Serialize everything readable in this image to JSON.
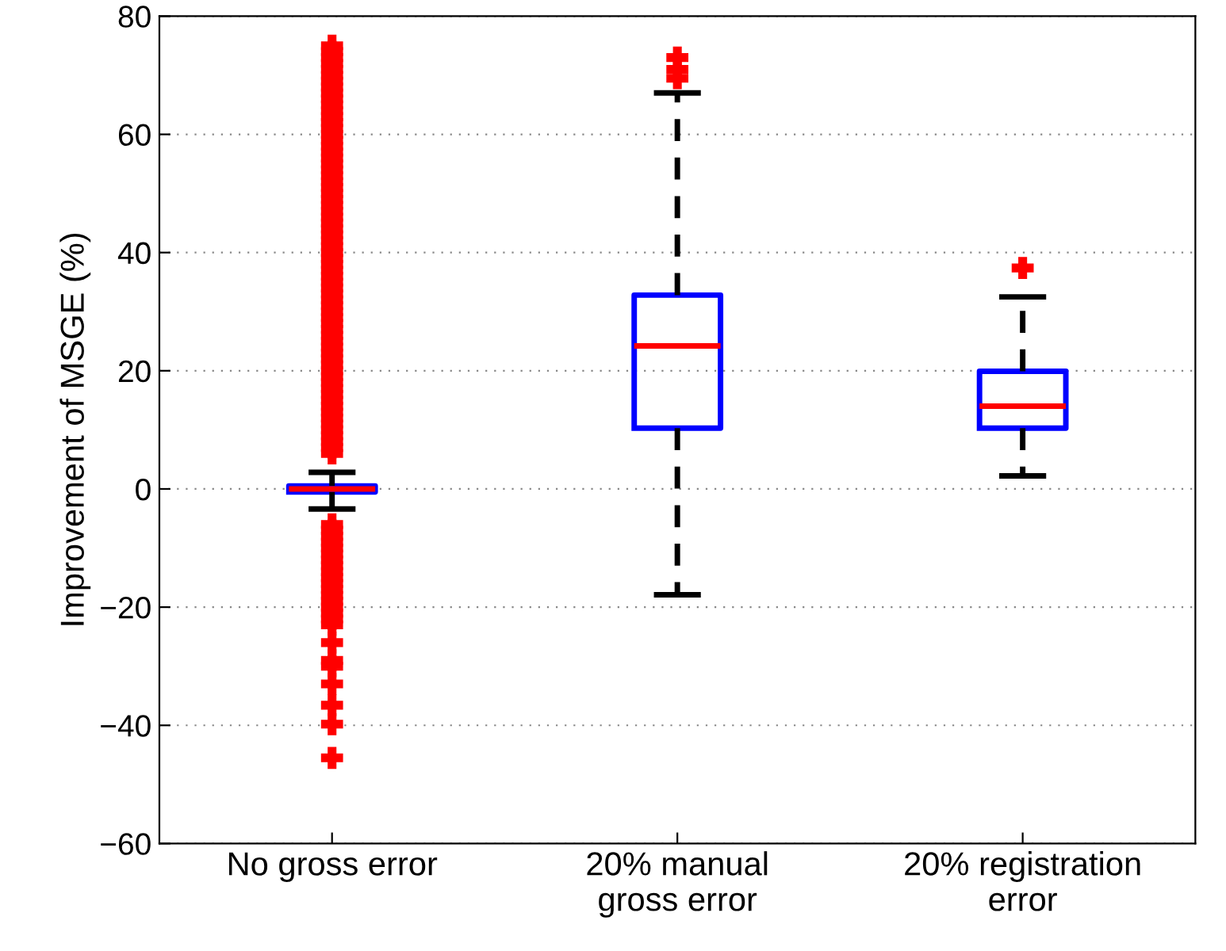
{
  "chart_data": {
    "type": "box",
    "ylabel": "Improvement of MSGE (%)",
    "categories": [
      "No gross error",
      "20% manual\ngross error",
      "20% registration\nerror"
    ],
    "boxes": [
      {
        "low": -3.4,
        "q1": -0.5,
        "median": 0,
        "q3": 0.5,
        "high": 2.8,
        "outliers": [
          6,
          7,
          8,
          9,
          10,
          11,
          12,
          13,
          14,
          15,
          16,
          17,
          18,
          19,
          20,
          21,
          22,
          23,
          24,
          25,
          26,
          27,
          28,
          29,
          30,
          31,
          32,
          33,
          34,
          35,
          36,
          37,
          38,
          39,
          40,
          41,
          42,
          43,
          44,
          45,
          46,
          47,
          48,
          49,
          50,
          51,
          52,
          53,
          54,
          55,
          56,
          57,
          58,
          59,
          60,
          61,
          62,
          63,
          64,
          65,
          66,
          67,
          68,
          69,
          70,
          71,
          72,
          73,
          74,
          75,
          -6,
          -7,
          -8,
          -9,
          -10,
          -11,
          -12,
          -13,
          -14,
          -15,
          -16,
          -17,
          -18,
          -19,
          -20,
          -21,
          -22,
          -23,
          -26,
          -29,
          -30,
          -33,
          -36.6,
          -39.8,
          -45.5
        ]
      },
      {
        "low": -17.9,
        "q1": 10.3,
        "median": 24.2,
        "q3": 32.8,
        "high": 67.0,
        "outliers": [
          69.5,
          71,
          73
        ]
      },
      {
        "low": 2.2,
        "q1": 10.3,
        "median": 14.0,
        "q3": 19.9,
        "high": 32.5,
        "outliers": [
          37.4
        ]
      }
    ],
    "ylim": [
      -60,
      80
    ],
    "yticks": [
      {
        "value": -60,
        "label": "−60"
      },
      {
        "value": -40,
        "label": "−40"
      },
      {
        "value": -20,
        "label": "−20"
      },
      0,
      20,
      40,
      60,
      80
    ],
    "grid": "y",
    "marker": "cross"
  }
}
